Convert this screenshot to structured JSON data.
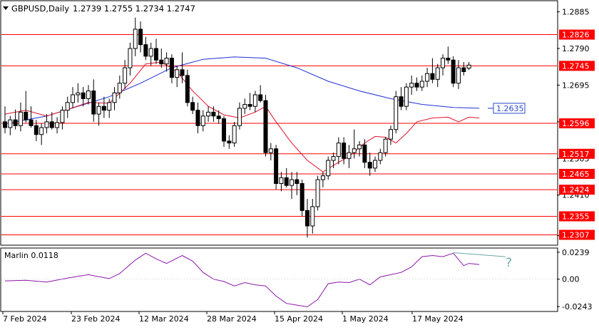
{
  "header": {
    "symbol_label": "GBPUSD,Daily",
    "ohlc_text": "1.2739 1.2755 1.2734 1.2747"
  },
  "indicator": {
    "label": "Marlin 0.0118",
    "note": "?"
  },
  "colors": {
    "level_line": "#ff0000",
    "ma_slow": "#1f2fd6",
    "ma_fast": "#e0102a",
    "oscillator": "#8b17a8",
    "divergence": "#6aa6a6",
    "candle": "#000000",
    "badge_blue_bg": "#ffffff",
    "badge_blue_border": "#2b4acb"
  },
  "chart_data": [
    {
      "type": "candlestick",
      "title": "GBPUSD,Daily",
      "ylim": [
        1.2282,
        1.2912
      ],
      "price_axis_ticks": [
        "1.2885",
        "1.2790",
        "1.2695",
        "1.2600",
        "1.2505",
        "1.2410",
        "1.2305"
      ],
      "level_labels": [
        "1.2826",
        "1.2745",
        "1.2596",
        "1.2517",
        "1.2465",
        "1.2424",
        "1.2355",
        "1.2307"
      ],
      "levels": [
        1.2826,
        1.2745,
        1.2596,
        1.2517,
        1.2465,
        1.2424,
        1.2355,
        1.2307
      ],
      "ma_slow_label": "1.2635",
      "date_labels": [
        "7 Feb 2024",
        "23 Feb 2024",
        "12 Mar 2024",
        "28 Mar 2024",
        "15 Apr 2024",
        "1 May 2024",
        "17 May 2024"
      ],
      "candles": [
        [
          1.26,
          1.264,
          1.257,
          1.2585
        ],
        [
          1.2585,
          1.2615,
          1.2565,
          1.2605
        ],
        [
          1.2605,
          1.2632,
          1.258,
          1.259
        ],
        [
          1.259,
          1.265,
          1.2575,
          1.2625
        ],
        [
          1.2625,
          1.268,
          1.2598,
          1.2605
        ],
        [
          1.2605,
          1.264,
          1.2585,
          1.259
        ],
        [
          1.259,
          1.2605,
          1.255,
          1.2567
        ],
        [
          1.2567,
          1.2596,
          1.254,
          1.2585
        ],
        [
          1.2585,
          1.262,
          1.257,
          1.26
        ],
        [
          1.26,
          1.2625,
          1.258,
          1.2585
        ],
        [
          1.2585,
          1.2612,
          1.257,
          1.2598
        ],
        [
          1.2598,
          1.264,
          1.258,
          1.263
        ],
        [
          1.263,
          1.2665,
          1.261,
          1.265
        ],
        [
          1.265,
          1.269,
          1.2635,
          1.267
        ],
        [
          1.267,
          1.27,
          1.265,
          1.2675
        ],
        [
          1.2675,
          1.269,
          1.264,
          1.266
        ],
        [
          1.266,
          1.2695,
          1.2645,
          1.268
        ],
        [
          1.268,
          1.271,
          1.26,
          1.262
        ],
        [
          1.262,
          1.265,
          1.259,
          1.264
        ],
        [
          1.264,
          1.2665,
          1.261,
          1.263
        ],
        [
          1.263,
          1.266,
          1.261,
          1.265
        ],
        [
          1.265,
          1.269,
          1.263,
          1.2675
        ],
        [
          1.2675,
          1.272,
          1.266,
          1.27
        ],
        [
          1.27,
          1.276,
          1.2685,
          1.274
        ],
        [
          1.274,
          1.2805,
          1.272,
          1.279
        ],
        [
          1.279,
          1.287,
          1.277,
          1.284
        ],
        [
          1.284,
          1.286,
          1.278,
          1.28
        ],
        [
          1.28,
          1.282,
          1.276,
          1.277
        ],
        [
          1.277,
          1.2805,
          1.2745,
          1.279
        ],
        [
          1.279,
          1.2815,
          1.275,
          1.276
        ],
        [
          1.276,
          1.279,
          1.274,
          1.275
        ],
        [
          1.275,
          1.278,
          1.273,
          1.2765
        ],
        [
          1.2765,
          1.2775,
          1.27,
          1.2715
        ],
        [
          1.2715,
          1.2745,
          1.269,
          1.2735
        ],
        [
          1.2735,
          1.278,
          1.27,
          1.272
        ],
        [
          1.272,
          1.2735,
          1.264,
          1.265
        ],
        [
          1.265,
          1.2665,
          1.262,
          1.263
        ],
        [
          1.263,
          1.265,
          1.257,
          1.259
        ],
        [
          1.259,
          1.263,
          1.2575,
          1.2615
        ],
        [
          1.2615,
          1.264,
          1.26,
          1.2625
        ],
        [
          1.2625,
          1.264,
          1.26,
          1.2615
        ],
        [
          1.2615,
          1.263,
          1.2595,
          1.2608
        ],
        [
          1.2608,
          1.2615,
          1.2535,
          1.255
        ],
        [
          1.255,
          1.2565,
          1.253,
          1.2545
        ],
        [
          1.2545,
          1.26,
          1.2535,
          1.259
        ],
        [
          1.259,
          1.265,
          1.258,
          1.2635
        ],
        [
          1.2635,
          1.266,
          1.262,
          1.2645
        ],
        [
          1.2645,
          1.2675,
          1.263,
          1.264
        ],
        [
          1.264,
          1.268,
          1.2625,
          1.267
        ],
        [
          1.267,
          1.2695,
          1.265,
          1.2655
        ],
        [
          1.2655,
          1.267,
          1.251,
          1.252
        ],
        [
          1.252,
          1.2545,
          1.25,
          1.253
        ],
        [
          1.253,
          1.254,
          1.2425,
          1.244
        ],
        [
          1.244,
          1.247,
          1.242,
          1.2455
        ],
        [
          1.2455,
          1.248,
          1.243,
          1.2435
        ],
        [
          1.2435,
          1.247,
          1.24,
          1.245
        ],
        [
          1.245,
          1.247,
          1.241,
          1.244
        ],
        [
          1.244,
          1.245,
          1.2355,
          1.237
        ],
        [
          1.237,
          1.24,
          1.23,
          1.233
        ],
        [
          1.233,
          1.24,
          1.231,
          1.238
        ],
        [
          1.238,
          1.246,
          1.237,
          1.245
        ],
        [
          1.245,
          1.247,
          1.243,
          1.246
        ],
        [
          1.246,
          1.251,
          1.245,
          1.25
        ],
        [
          1.25,
          1.252,
          1.248,
          1.251
        ],
        [
          1.251,
          1.256,
          1.249,
          1.2545
        ],
        [
          1.2545,
          1.256,
          1.249,
          1.2505
        ],
        [
          1.2505,
          1.254,
          1.248,
          1.252
        ],
        [
          1.252,
          1.258,
          1.2505,
          1.253
        ],
        [
          1.253,
          1.255,
          1.251,
          1.254
        ],
        [
          1.254,
          1.2555,
          1.248,
          1.2495
        ],
        [
          1.2495,
          1.252,
          1.246,
          1.248
        ],
        [
          1.248,
          1.251,
          1.247,
          1.25
        ],
        [
          1.25,
          1.253,
          1.249,
          1.252
        ],
        [
          1.252,
          1.256,
          1.251,
          1.2555
        ],
        [
          1.2555,
          1.259,
          1.254,
          1.258
        ],
        [
          1.258,
          1.268,
          1.257,
          1.2665
        ],
        [
          1.2665,
          1.269,
          1.263,
          1.264
        ],
        [
          1.264,
          1.27,
          1.263,
          1.269
        ],
        [
          1.269,
          1.272,
          1.267,
          1.27
        ],
        [
          1.27,
          1.2715,
          1.268,
          1.269
        ],
        [
          1.269,
          1.272,
          1.268,
          1.2705
        ],
        [
          1.2705,
          1.274,
          1.269,
          1.2725
        ],
        [
          1.2725,
          1.2765,
          1.27,
          1.271
        ],
        [
          1.271,
          1.275,
          1.269,
          1.274
        ],
        [
          1.274,
          1.2775,
          1.272,
          1.2765
        ],
        [
          1.2765,
          1.2795,
          1.275,
          1.276
        ],
        [
          1.276,
          1.277,
          1.269,
          1.27
        ],
        [
          1.27,
          1.276,
          1.2685,
          1.274
        ],
        [
          1.274,
          1.2755,
          1.272,
          1.273
        ],
        [
          1.2739,
          1.2755,
          1.2734,
          1.2747
        ]
      ],
      "ma_slow": [
        [
          0,
          1.2595
        ],
        [
          8,
          1.2615
        ],
        [
          14,
          1.264
        ],
        [
          20,
          1.2665
        ],
        [
          26,
          1.27
        ],
        [
          32,
          1.274
        ],
        [
          38,
          1.2762
        ],
        [
          44,
          1.2768
        ],
        [
          50,
          1.2765
        ],
        [
          56,
          1.274
        ],
        [
          62,
          1.2705
        ],
        [
          68,
          1.268
        ],
        [
          74,
          1.266
        ],
        [
          80,
          1.2645
        ],
        [
          86,
          1.2637
        ],
        [
          91,
          1.2635
        ]
      ],
      "ma_fast": [
        [
          0,
          1.262
        ],
        [
          4,
          1.263
        ],
        [
          8,
          1.2615
        ],
        [
          12,
          1.2632
        ],
        [
          16,
          1.265
        ],
        [
          20,
          1.2648
        ],
        [
          24,
          1.27
        ],
        [
          27,
          1.275
        ],
        [
          30,
          1.2755
        ],
        [
          33,
          1.273
        ],
        [
          36,
          1.268
        ],
        [
          39,
          1.264
        ],
        [
          42,
          1.2618
        ],
        [
          45,
          1.261
        ],
        [
          48,
          1.2625
        ],
        [
          50,
          1.264
        ],
        [
          52,
          1.26
        ],
        [
          55,
          1.2545
        ],
        [
          58,
          1.25
        ],
        [
          61,
          1.247
        ],
        [
          64,
          1.2495
        ],
        [
          66,
          1.251
        ],
        [
          69,
          1.2545
        ],
        [
          71,
          1.2562
        ],
        [
          73,
          1.256
        ],
        [
          75,
          1.2545
        ],
        [
          77,
          1.257
        ],
        [
          79,
          1.26
        ],
        [
          82,
          1.261
        ],
        [
          85,
          1.2612
        ],
        [
          87,
          1.26
        ],
        [
          89,
          1.2612
        ],
        [
          91,
          1.261
        ]
      ],
      "oscillator_axis_ticks": [
        "0.0239",
        "0.00",
        "-0.0243"
      ],
      "oscillator_ylim": [
        -0.028,
        0.027
      ],
      "oscillator": [
        [
          0,
          -0.0015
        ],
        [
          4,
          -0.001
        ],
        [
          8,
          -0.0025
        ],
        [
          12,
          0.001
        ],
        [
          16,
          0.004
        ],
        [
          20,
          0.0005
        ],
        [
          22,
          0.005
        ],
        [
          25,
          0.017
        ],
        [
          27,
          0.023
        ],
        [
          29,
          0.018
        ],
        [
          31,
          0.014
        ],
        [
          34,
          0.021
        ],
        [
          36,
          0.016
        ],
        [
          38,
          0.006
        ],
        [
          40,
          0.0
        ],
        [
          42,
          -0.002
        ],
        [
          44,
          -0.006
        ],
        [
          46,
          -0.003
        ],
        [
          48,
          -0.005
        ],
        [
          50,
          -0.006
        ],
        [
          52,
          -0.015
        ],
        [
          54,
          -0.0215
        ],
        [
          56,
          -0.023
        ],
        [
          58,
          -0.0245
        ],
        [
          60,
          -0.018
        ],
        [
          62,
          -0.004
        ],
        [
          64,
          -0.0025
        ],
        [
          66,
          -0.003
        ],
        [
          68,
          0.0
        ],
        [
          70,
          -0.005
        ],
        [
          72,
          0.002
        ],
        [
          74,
          0.004
        ],
        [
          76,
          0.006
        ],
        [
          78,
          0.011
        ],
        [
          80,
          0.02
        ],
        [
          82,
          0.021
        ],
        [
          84,
          0.02
        ],
        [
          86,
          0.023
        ],
        [
          88,
          0.012
        ],
        [
          89,
          0.014
        ],
        [
          91,
          0.013
        ]
      ],
      "divergence_line": [
        [
          86,
          0.0235
        ],
        [
          96,
          0.02
        ]
      ]
    }
  ]
}
